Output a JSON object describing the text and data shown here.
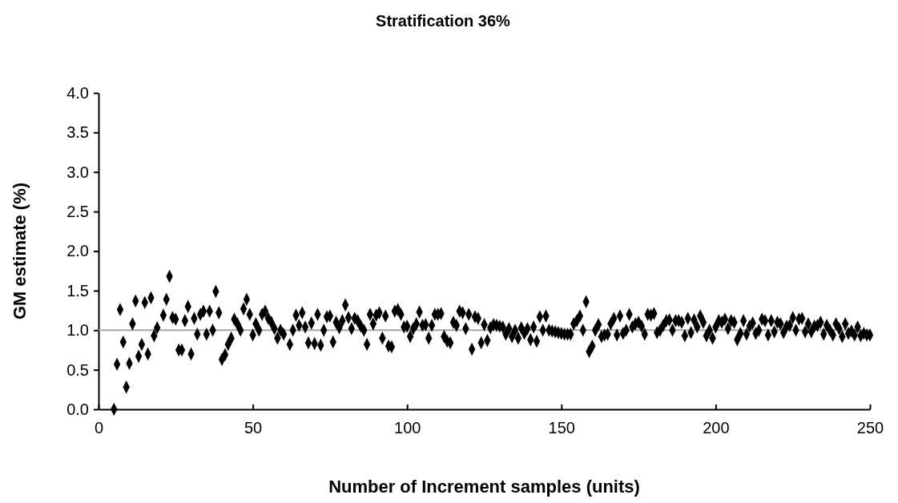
{
  "chart_data": {
    "type": "scatter",
    "title": "Stratification 36%",
    "xlabel": "Number of Increment samples (units)",
    "ylabel": "GM estimate (%)",
    "xlim": [
      0,
      250
    ],
    "xticks": [
      0,
      50,
      100,
      150,
      200,
      250
    ],
    "ylim": [
      0,
      4
    ],
    "yticks": [
      {
        "value": 0,
        "label": "0.0"
      },
      {
        "value": 0.5,
        "label": "0.5"
      },
      {
        "value": 1,
        "label": "1.0"
      },
      {
        "value": 1.5,
        "label": "1.5"
      },
      {
        "value": 2,
        "label": "2.0"
      },
      {
        "value": 2.5,
        "label": "2.5"
      },
      {
        "value": 3,
        "label": "3.0"
      },
      {
        "value": 3.5,
        "label": "3.5"
      },
      {
        "value": 4,
        "label": "4.0"
      }
    ],
    "grid": false,
    "marker": "diamond",
    "ref_lines": [
      {
        "axis": "y",
        "value": 1,
        "color": "#a6a6a6"
      }
    ],
    "series": [
      {
        "color": "#000000",
        "x": [
          5,
          6,
          7,
          8,
          9,
          10,
          11,
          12,
          13,
          14,
          15,
          16,
          17,
          18,
          19,
          21,
          22,
          23,
          24,
          25,
          26,
          27,
          28,
          29,
          30,
          31,
          32,
          33,
          34,
          35,
          36,
          37,
          38,
          39,
          40,
          41,
          42,
          43,
          44,
          45,
          46,
          47,
          48,
          49,
          50,
          51,
          52,
          53,
          54,
          55,
          56,
          57,
          58,
          59,
          60,
          62,
          63,
          64,
          65,
          66,
          67,
          68,
          69,
          70,
          71,
          72,
          73,
          74,
          75,
          76,
          77,
          78,
          79,
          80,
          81,
          82,
          83,
          84,
          85,
          86,
          87,
          88,
          89,
          90,
          91,
          92,
          93,
          94,
          95,
          96,
          97,
          98,
          99,
          100,
          101,
          102,
          103,
          104,
          105,
          106,
          107,
          108,
          109,
          110,
          111,
          112,
          113,
          114,
          115,
          116,
          117,
          118,
          119,
          120,
          121,
          122,
          123,
          124,
          125,
          126,
          127,
          128,
          129,
          130,
          131,
          132,
          133,
          134,
          135,
          136,
          137,
          138,
          139,
          140,
          141,
          142,
          143,
          144,
          145,
          146,
          147,
          148,
          149,
          150,
          151,
          152,
          153,
          154,
          155,
          156,
          157,
          158,
          159,
          160,
          161,
          162,
          163,
          164,
          165,
          166,
          167,
          168,
          169,
          170,
          171,
          172,
          173,
          174,
          175,
          176,
          177,
          178,
          179,
          180,
          181,
          182,
          183,
          184,
          185,
          186,
          187,
          188,
          189,
          190,
          191,
          192,
          193,
          194,
          195,
          196,
          197,
          198,
          199,
          200,
          201,
          202,
          203,
          204,
          205,
          206,
          207,
          208,
          209,
          210,
          211,
          212,
          213,
          214,
          215,
          216,
          217,
          218,
          219,
          220,
          221,
          222,
          223,
          224,
          225,
          226,
          227,
          228,
          229,
          230,
          231,
          232,
          233,
          234,
          235,
          236,
          237,
          238,
          239,
          240,
          241,
          242,
          243,
          244,
          245,
          246,
          247,
          248,
          249,
          250
        ],
        "values": [
          0.0,
          0.57,
          1.26,
          0.85,
          0.28,
          0.58,
          1.08,
          1.37,
          0.67,
          0.82,
          1.35,
          0.7,
          1.41,
          0.93,
          1.03,
          1.19,
          1.39,
          1.68,
          1.16,
          1.14,
          0.75,
          0.75,
          1.12,
          1.3,
          0.7,
          1.15,
          0.95,
          1.2,
          1.24,
          0.95,
          1.24,
          1.0,
          1.49,
          1.22,
          0.63,
          0.69,
          0.82,
          0.9,
          1.14,
          1.08,
          1.0,
          1.27,
          1.39,
          1.2,
          0.94,
          1.08,
          1.0,
          1.2,
          1.24,
          1.15,
          1.1,
          1.02,
          0.9,
          1.0,
          0.95,
          0.82,
          1.0,
          1.19,
          1.06,
          1.22,
          1.04,
          0.84,
          1.09,
          0.83,
          1.2,
          0.81,
          1.0,
          1.17,
          1.18,
          0.85,
          1.1,
          1.03,
          1.12,
          1.32,
          1.16,
          1.02,
          1.15,
          1.12,
          1.05,
          1.0,
          0.82,
          1.2,
          1.08,
          1.19,
          1.22,
          0.9,
          1.18,
          0.8,
          0.79,
          1.24,
          1.26,
          1.2,
          1.04,
          1.05,
          0.92,
          1.02,
          1.08,
          1.23,
          1.06,
          1.07,
          0.9,
          1.06,
          1.2,
          1.2,
          1.21,
          0.92,
          0.86,
          0.84,
          1.1,
          1.06,
          1.24,
          1.22,
          1.02,
          1.2,
          0.76,
          1.17,
          1.15,
          0.84,
          1.07,
          0.87,
          1.03,
          1.07,
          1.06,
          1.05,
          1.04,
          0.95,
          1.02,
          0.92,
          1.0,
          0.9,
          1.03,
          0.96,
          1.02,
          0.88,
          1.04,
          0.86,
          1.17,
          1.0,
          1.18,
          1.0,
          0.99,
          0.98,
          0.97,
          0.96,
          0.95,
          0.95,
          0.95,
          1.08,
          1.12,
          1.18,
          1.0,
          1.36,
          0.73,
          0.8,
          1.0,
          1.07,
          0.92,
          0.94,
          0.95,
          1.08,
          1.15,
          0.94,
          1.18,
          0.96,
          1.0,
          1.2,
          1.04,
          1.08,
          1.1,
          1.05,
          0.95,
          1.2,
          1.19,
          1.21,
          0.97,
          1.0,
          1.06,
          1.12,
          1.13,
          1.0,
          1.12,
          1.12,
          1.1,
          0.93,
          1.15,
          0.97,
          1.13,
          1.04,
          1.18,
          1.1,
          0.93,
          1.0,
          0.9,
          1.04,
          1.12,
          1.1,
          1.14,
          1.02,
          1.12,
          1.1,
          0.88,
          0.96,
          1.12,
          0.95,
          1.05,
          1.09,
          0.96,
          1.0,
          1.14,
          1.12,
          0.94,
          1.12,
          0.98,
          1.1,
          1.08,
          0.97,
          1.05,
          1.06,
          1.16,
          1.0,
          1.14,
          1.15,
          0.98,
          1.08,
          0.98,
          1.05,
          1.06,
          1.1,
          0.95,
          1.06,
          1.0,
          0.94,
          1.08,
          1.02,
          0.92,
          1.08,
          0.96,
          0.99,
          0.94,
          1.04,
          0.93,
          0.96,
          0.94,
          0.94
        ]
      }
    ]
  }
}
